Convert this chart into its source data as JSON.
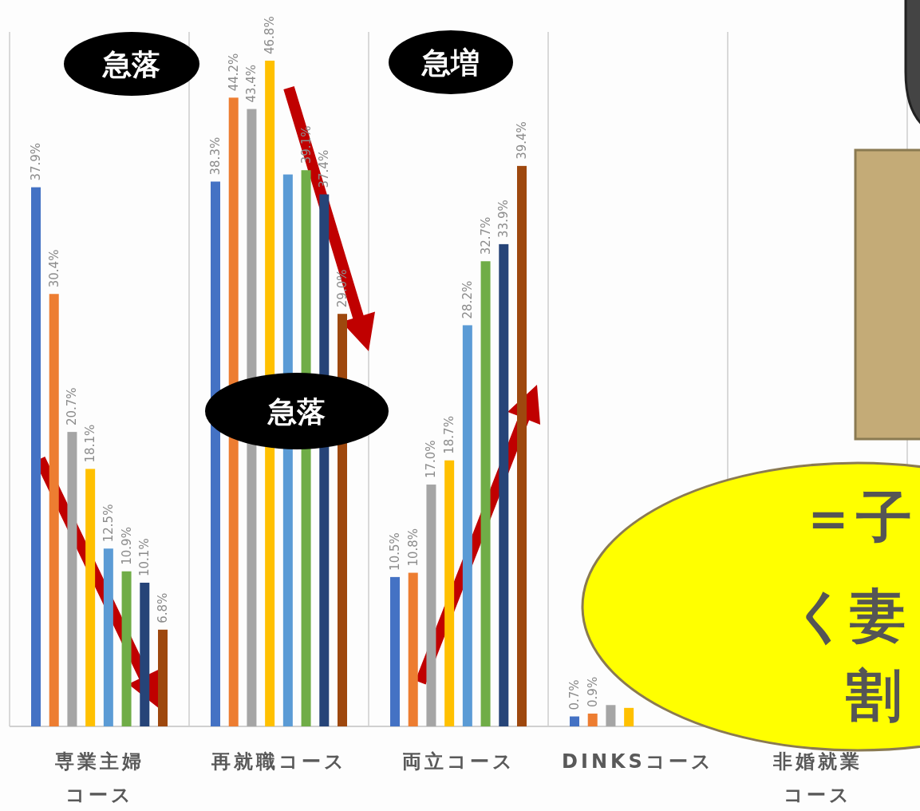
{
  "chart_data": {
    "type": "bar",
    "categories": [
      "専業主婦コース",
      "再就職コース",
      "両立コース",
      "DINKSコース",
      "非婚就業コース"
    ],
    "series": [
      {
        "color": "#4472c4",
        "values": [
          37.9,
          38.3,
          10.5,
          0.7,
          null
        ],
        "value_labels": [
          "37.9%",
          "38.3%",
          "10.5%",
          "0.7%",
          null
        ]
      },
      {
        "color": "#ed7d31",
        "values": [
          30.4,
          44.2,
          10.8,
          0.9,
          null
        ],
        "value_labels": [
          "30.4%",
          "44.2%",
          "10.8%",
          "0.9%",
          null
        ]
      },
      {
        "color": "#a5a5a5",
        "values": [
          20.7,
          43.4,
          17.0,
          1.5,
          null
        ],
        "value_labels": [
          "20.7%",
          "43.4%",
          "17.0%",
          null,
          null
        ]
      },
      {
        "color": "#ffc000",
        "values": [
          18.1,
          46.8,
          18.7,
          1.3,
          null
        ],
        "value_labels": [
          "18.1%",
          "46.8%",
          "18.7%",
          null,
          null
        ]
      },
      {
        "color": "#5b9bd5",
        "values": [
          12.5,
          38.8,
          28.2,
          null,
          null
        ],
        "value_labels": [
          "12.5%",
          null,
          "28.2%",
          null,
          null
        ]
      },
      {
        "color": "#70ad47",
        "values": [
          10.9,
          39.1,
          32.7,
          null,
          null
        ],
        "value_labels": [
          "10.9%",
          "39.1%",
          "32.7%",
          null,
          null
        ]
      },
      {
        "color": "#264478",
        "values": [
          10.1,
          37.4,
          33.9,
          null,
          null
        ],
        "value_labels": [
          "10.1%",
          "37.4%",
          "33.9%",
          null,
          null
        ]
      },
      {
        "color": "#9e480e",
        "values": [
          6.8,
          29.0,
          39.4,
          null,
          null
        ],
        "value_labels": [
          "6.8%",
          "29.0%",
          "39.4%",
          null,
          null
        ]
      }
    ],
    "data_labels": true,
    "grid": "x",
    "annotations": [
      "急落",
      "急増",
      "急落",
      "＝子",
      "く妻",
      "割"
    ]
  }
}
